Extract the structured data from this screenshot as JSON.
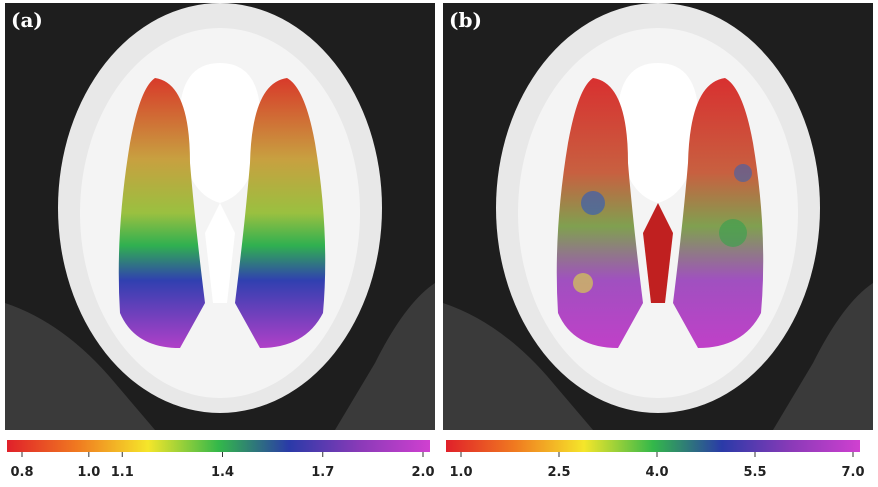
{
  "colorbar_colors": [
    "#e0202a",
    "#f07a20",
    "#f5e62a",
    "#33b84a",
    "#2a3aa8",
    "#8a3ab8",
    "#d040d0"
  ],
  "panels": [
    {
      "label": "(a)",
      "range": [
        0.8,
        2.0
      ],
      "ticks": [
        {
          "value": 0.8,
          "label": "0.8"
        },
        {
          "value": 1.0,
          "label": "1.0"
        },
        {
          "value": 1.1,
          "label": "1.1"
        },
        {
          "value": 1.4,
          "label": "1.4"
        },
        {
          "value": 1.7,
          "label": "1.7"
        },
        {
          "value": 2.0,
          "label": "2.0"
        }
      ]
    },
    {
      "label": "(b)",
      "range": [
        1.0,
        7.0
      ],
      "ticks": [
        {
          "value": 1.0,
          "label": "1.0"
        },
        {
          "value": 2.5,
          "label": "2.5"
        },
        {
          "value": 4.0,
          "label": "4.0"
        },
        {
          "value": 5.5,
          "label": "5.5"
        },
        {
          "value": 7.0,
          "label": "7.0"
        }
      ]
    }
  ]
}
